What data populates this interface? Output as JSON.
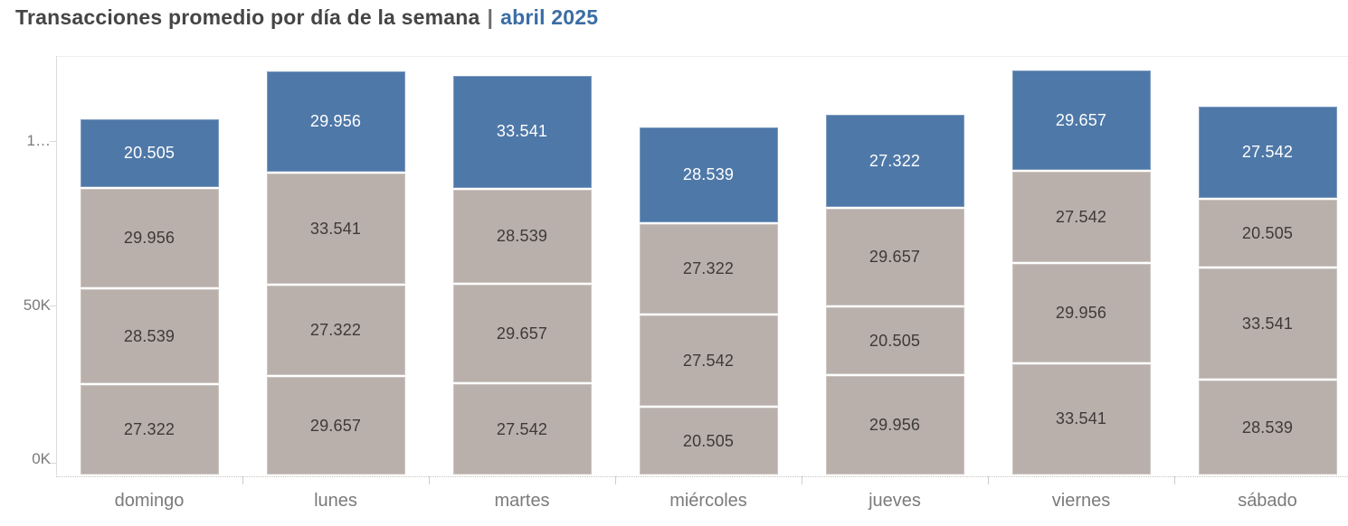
{
  "title": {
    "text": "Transacciones promedio por día de la semana",
    "separator": "|",
    "period": "abril 2025"
  },
  "colors": {
    "segment_blue": "#4e78a8",
    "segment_gray": "#b9b0ab",
    "title_text": "#454545",
    "title_period": "#3a6da4",
    "axis_text": "#7a7a7a",
    "value_label_on_gray": "#3e3a39",
    "value_label_on_blue": "#ffffff"
  },
  "y_axis": {
    "tick_labels": [
      "0K",
      "50K",
      "1…"
    ],
    "tick_values": [
      0,
      50000,
      100000
    ]
  },
  "chart_data": {
    "type": "bar",
    "stacked": true,
    "title": "Transacciones promedio por día de la semana | abril 2025",
    "xlabel": "",
    "ylabel": "",
    "ylim": [
      0,
      125000
    ],
    "grid": false,
    "legend": "none",
    "value_label_format": "thousands separated by dot",
    "categories": [
      "domingo",
      "lunes",
      "martes",
      "miércoles",
      "jueves",
      "viernes",
      "sábado"
    ],
    "series_note": "segments listed bottom to top; top segment is blue, others gray",
    "bars": [
      {
        "category": "domingo",
        "total": 106322,
        "segments": [
          {
            "value": 27322,
            "label": "27.322",
            "series": "gray"
          },
          {
            "value": 28539,
            "label": "28.539",
            "series": "gray"
          },
          {
            "value": 29956,
            "label": "29.956",
            "series": "gray"
          },
          {
            "value": 20505,
            "label": "20.505",
            "series": "blue"
          }
        ]
      },
      {
        "category": "lunes",
        "total": 120476,
        "segments": [
          {
            "value": 29657,
            "label": "29.657",
            "series": "gray"
          },
          {
            "value": 27322,
            "label": "27.322",
            "series": "gray"
          },
          {
            "value": 33541,
            "label": "33.541",
            "series": "gray"
          },
          {
            "value": 29956,
            "label": "29.956",
            "series": "blue"
          }
        ]
      },
      {
        "category": "martes",
        "total": 119279,
        "segments": [
          {
            "value": 27542,
            "label": "27.542",
            "series": "gray"
          },
          {
            "value": 29657,
            "label": "29.657",
            "series": "gray"
          },
          {
            "value": 28539,
            "label": "28.539",
            "series": "gray"
          },
          {
            "value": 33541,
            "label": "33.541",
            "series": "blue"
          }
        ]
      },
      {
        "category": "miércoles",
        "total": 103908,
        "segments": [
          {
            "value": 20505,
            "label": "20.505",
            "series": "gray"
          },
          {
            "value": 27542,
            "label": "27.542",
            "series": "gray"
          },
          {
            "value": 27322,
            "label": "27.322",
            "series": "gray"
          },
          {
            "value": 28539,
            "label": "28.539",
            "series": "blue"
          }
        ]
      },
      {
        "category": "jueves",
        "total": 107440,
        "segments": [
          {
            "value": 29956,
            "label": "29.956",
            "series": "gray"
          },
          {
            "value": 20505,
            "label": "20.505",
            "series": "gray"
          },
          {
            "value": 29657,
            "label": "29.657",
            "series": "gray"
          },
          {
            "value": 27322,
            "label": "27.322",
            "series": "blue"
          }
        ]
      },
      {
        "category": "viernes",
        "total": 120696,
        "segments": [
          {
            "value": 33541,
            "label": "33.541",
            "series": "gray"
          },
          {
            "value": 29956,
            "label": "29.956",
            "series": "gray"
          },
          {
            "value": 27542,
            "label": "27.542",
            "series": "gray"
          },
          {
            "value": 29657,
            "label": "29.657",
            "series": "blue"
          }
        ]
      },
      {
        "category": "sábado",
        "total": 110127,
        "segments": [
          {
            "value": 28539,
            "label": "28.539",
            "series": "gray"
          },
          {
            "value": 33541,
            "label": "33.541",
            "series": "gray"
          },
          {
            "value": 20505,
            "label": "20.505",
            "series": "gray"
          },
          {
            "value": 27542,
            "label": "27.542",
            "series": "blue"
          }
        ]
      }
    ]
  }
}
